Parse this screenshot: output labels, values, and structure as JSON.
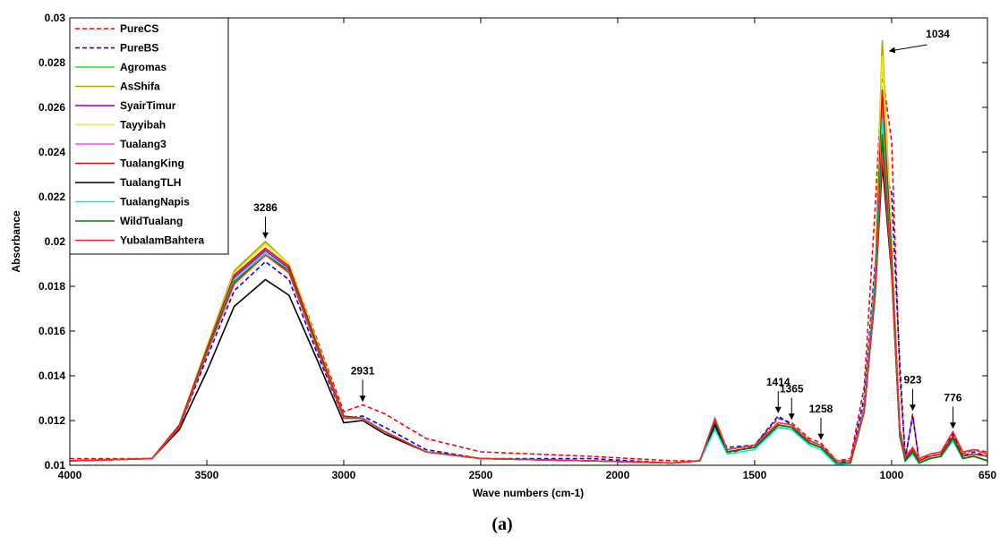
{
  "chart_data": {
    "type": "line",
    "xlabel": "Wave numbers (cm-1)",
    "ylabel": "Absorbance",
    "caption": "(a)",
    "xlim": [
      4000,
      650
    ],
    "ylim": [
      0.01,
      0.03
    ],
    "xticks": [
      4000,
      3500,
      3000,
      2500,
      2000,
      1500,
      1000,
      650
    ],
    "yticks": [
      0.01,
      0.012,
      0.014,
      0.016,
      0.018,
      0.02,
      0.022,
      0.024,
      0.026,
      0.028,
      0.03
    ],
    "legend": "upper left",
    "annotations": [
      "3286",
      "2931",
      "1414",
      "1365",
      "1258",
      "923",
      "776",
      "1034"
    ],
    "x": [
      4000,
      3700,
      3600,
      3500,
      3400,
      3286,
      3200,
      3100,
      3000,
      2931,
      2850,
      2700,
      2500,
      2100,
      1800,
      1700,
      1645,
      1600,
      1500,
      1414,
      1365,
      1300,
      1258,
      1200,
      1150,
      1100,
      1060,
      1034,
      1000,
      970,
      950,
      923,
      900,
      860,
      820,
      776,
      740,
      700,
      650
    ],
    "series": [
      {
        "name": "PureCS",
        "color": "#ff0000",
        "dash": true,
        "values": [
          0.0103,
          0.0103,
          0.0118,
          0.0152,
          0.0186,
          0.0199,
          0.019,
          0.0157,
          0.0124,
          0.0127,
          0.0123,
          0.0112,
          0.0106,
          0.0104,
          0.0102,
          0.0102,
          0.0117,
          0.0105,
          0.0109,
          0.0121,
          0.0119,
          0.0112,
          0.011,
          0.0102,
          0.0103,
          0.0135,
          0.0215,
          0.0275,
          0.0245,
          0.014,
          0.0103,
          0.0123,
          0.0102,
          0.0105,
          0.0106,
          0.0115,
          0.0105,
          0.0107,
          0.0106
        ]
      },
      {
        "name": "PureBS",
        "color": "#0000ff",
        "dash": true,
        "values": [
          0.0102,
          0.0103,
          0.0117,
          0.0148,
          0.0178,
          0.0191,
          0.0183,
          0.0151,
          0.0121,
          0.0122,
          0.0117,
          0.0107,
          0.0103,
          0.0103,
          0.0101,
          0.0102,
          0.0116,
          0.0108,
          0.0109,
          0.0122,
          0.0118,
          0.0111,
          0.0109,
          0.0101,
          0.0102,
          0.013,
          0.019,
          0.0233,
          0.0222,
          0.0145,
          0.0103,
          0.0122,
          0.0102,
          0.0104,
          0.0105,
          0.0114,
          0.0104,
          0.0106,
          0.0104
        ]
      },
      {
        "name": "Agromas",
        "color": "#22e022",
        "values": [
          0.0102,
          0.0103,
          0.0118,
          0.0152,
          0.0185,
          0.0197,
          0.0189,
          0.0155,
          0.0122,
          0.0121,
          0.0115,
          0.0106,
          0.0103,
          0.0102,
          0.0101,
          0.0102,
          0.0119,
          0.0106,
          0.0108,
          0.0118,
          0.0117,
          0.011,
          0.0108,
          0.0101,
          0.0101,
          0.0125,
          0.018,
          0.025,
          0.019,
          0.0115,
          0.0102,
          0.0106,
          0.0101,
          0.0103,
          0.0104,
          0.0112,
          0.0103,
          0.0104,
          0.0102
        ]
      },
      {
        "name": "AsShifa",
        "color": "#a8a800",
        "values": [
          0.0102,
          0.0103,
          0.0118,
          0.0153,
          0.0187,
          0.02,
          0.019,
          0.0156,
          0.0122,
          0.0121,
          0.0115,
          0.0106,
          0.0103,
          0.0102,
          0.0101,
          0.0102,
          0.0118,
          0.0106,
          0.0108,
          0.0118,
          0.0117,
          0.011,
          0.0108,
          0.0101,
          0.0101,
          0.0126,
          0.0185,
          0.029,
          0.02,
          0.0116,
          0.0102,
          0.0106,
          0.0101,
          0.0103,
          0.0104,
          0.0112,
          0.0103,
          0.0104,
          0.0102
        ]
      },
      {
        "name": "SyairTimur",
        "color": "#9a00b0",
        "values": [
          0.0102,
          0.0103,
          0.0118,
          0.0152,
          0.0184,
          0.0196,
          0.0188,
          0.0155,
          0.0122,
          0.0121,
          0.0115,
          0.0106,
          0.0103,
          0.0102,
          0.0101,
          0.0102,
          0.0118,
          0.0106,
          0.0108,
          0.0118,
          0.0117,
          0.011,
          0.0108,
          0.0101,
          0.0101,
          0.0124,
          0.0178,
          0.0245,
          0.0188,
          0.0114,
          0.0102,
          0.0106,
          0.0101,
          0.0103,
          0.0104,
          0.0112,
          0.0103,
          0.0104,
          0.0102
        ]
      },
      {
        "name": "Tayyibah",
        "color": "#f0f000",
        "values": [
          0.0102,
          0.0103,
          0.0118,
          0.0153,
          0.0186,
          0.0199,
          0.019,
          0.0156,
          0.0122,
          0.0121,
          0.0115,
          0.0106,
          0.0103,
          0.0102,
          0.0101,
          0.0102,
          0.0118,
          0.0106,
          0.0108,
          0.0118,
          0.0117,
          0.011,
          0.0108,
          0.0101,
          0.0101,
          0.0126,
          0.0184,
          0.0283,
          0.0198,
          0.0116,
          0.0102,
          0.0106,
          0.0101,
          0.0103,
          0.0104,
          0.0112,
          0.0103,
          0.0104,
          0.0102
        ]
      },
      {
        "name": "Tualang3",
        "color": "#ff44ff",
        "values": [
          0.0102,
          0.0103,
          0.0118,
          0.0152,
          0.0185,
          0.0197,
          0.0189,
          0.0155,
          0.0122,
          0.0121,
          0.0115,
          0.0106,
          0.0103,
          0.0102,
          0.0101,
          0.0102,
          0.0119,
          0.0106,
          0.0108,
          0.0118,
          0.0117,
          0.011,
          0.0108,
          0.0101,
          0.0101,
          0.0125,
          0.0182,
          0.0262,
          0.0192,
          0.0115,
          0.0102,
          0.0106,
          0.0101,
          0.0103,
          0.0104,
          0.0112,
          0.0103,
          0.0104,
          0.0102
        ]
      },
      {
        "name": "TualangKing",
        "color": "#dd1010",
        "values": [
          0.0102,
          0.0103,
          0.0118,
          0.0152,
          0.0185,
          0.0197,
          0.0189,
          0.0155,
          0.0122,
          0.0121,
          0.0115,
          0.0106,
          0.0103,
          0.0102,
          0.0101,
          0.0102,
          0.012,
          0.0106,
          0.0108,
          0.0118,
          0.0117,
          0.011,
          0.0108,
          0.0101,
          0.0101,
          0.0126,
          0.0183,
          0.0268,
          0.0195,
          0.0116,
          0.0103,
          0.0107,
          0.0102,
          0.0104,
          0.0105,
          0.0113,
          0.0104,
          0.0105,
          0.0104
        ]
      },
      {
        "name": "TualangTLH",
        "color": "#000000",
        "values": [
          0.0102,
          0.0103,
          0.0116,
          0.0142,
          0.0171,
          0.0183,
          0.0176,
          0.0148,
          0.0119,
          0.012,
          0.0114,
          0.0106,
          0.0103,
          0.0102,
          0.0101,
          0.0102,
          0.0118,
          0.0106,
          0.0108,
          0.0117,
          0.0116,
          0.011,
          0.0108,
          0.0101,
          0.0101,
          0.0124,
          0.0176,
          0.0235,
          0.0186,
          0.0113,
          0.0102,
          0.0106,
          0.0101,
          0.0103,
          0.0104,
          0.0111,
          0.0103,
          0.0104,
          0.0102
        ]
      },
      {
        "name": "TualangNapis",
        "color": "#00e8e8",
        "values": [
          0.0102,
          0.0103,
          0.0117,
          0.0151,
          0.0183,
          0.0195,
          0.0187,
          0.0154,
          0.0121,
          0.0121,
          0.0115,
          0.0106,
          0.0103,
          0.0102,
          0.0101,
          0.0102,
          0.0116,
          0.0105,
          0.0107,
          0.0117,
          0.0116,
          0.0109,
          0.0107,
          0.01,
          0.0101,
          0.0125,
          0.0182,
          0.0255,
          0.019,
          0.0114,
          0.0102,
          0.0105,
          0.0101,
          0.0103,
          0.0104,
          0.0111,
          0.0103,
          0.0104,
          0.0102
        ]
      },
      {
        "name": "WildTualang",
        "color": "#008000",
        "values": [
          0.0102,
          0.0103,
          0.0117,
          0.0151,
          0.0182,
          0.0194,
          0.0187,
          0.0154,
          0.0121,
          0.0121,
          0.0115,
          0.0106,
          0.0103,
          0.0102,
          0.0101,
          0.0102,
          0.012,
          0.0106,
          0.0108,
          0.0118,
          0.0117,
          0.011,
          0.0108,
          0.0101,
          0.0101,
          0.0124,
          0.0179,
          0.0248,
          0.0189,
          0.0115,
          0.0102,
          0.0106,
          0.0101,
          0.0103,
          0.0104,
          0.0112,
          0.0103,
          0.0104,
          0.0102
        ]
      },
      {
        "name": "YubalamBahtera",
        "color": "#ff2a2a",
        "values": [
          0.0102,
          0.0103,
          0.0117,
          0.015,
          0.0181,
          0.0194,
          0.0186,
          0.0153,
          0.0121,
          0.0121,
          0.0115,
          0.0106,
          0.0103,
          0.0102,
          0.0101,
          0.0102,
          0.0121,
          0.0107,
          0.0109,
          0.0119,
          0.0118,
          0.0111,
          0.0109,
          0.0102,
          0.0102,
          0.0124,
          0.0177,
          0.024,
          0.0188,
          0.0116,
          0.0104,
          0.0108,
          0.0103,
          0.0105,
          0.0106,
          0.0115,
          0.0106,
          0.0107,
          0.0105
        ]
      }
    ]
  }
}
